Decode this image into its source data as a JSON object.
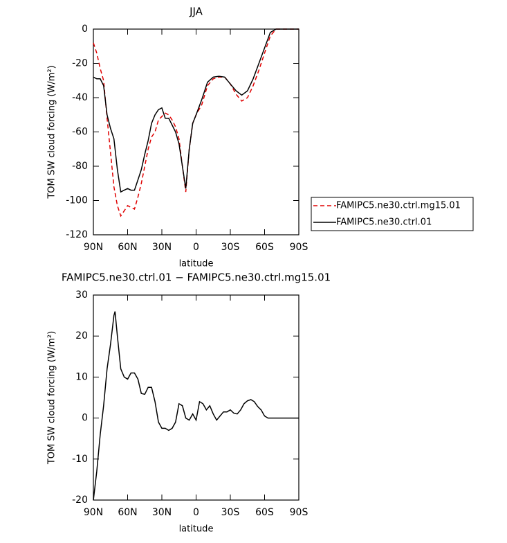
{
  "chart_data": [
    {
      "type": "line",
      "title": "JJA",
      "xlabel": "latitude",
      "ylabel": "TOM SW cloud forcing (W/m²)",
      "x": [
        90,
        87,
        84,
        81,
        78,
        75,
        72,
        69,
        66,
        63,
        60,
        57,
        54,
        51,
        48,
        45,
        42,
        39,
        36,
        33,
        30,
        27,
        24,
        21,
        18,
        15,
        12,
        9,
        6,
        3,
        0,
        -5,
        -10,
        -15,
        -20,
        -25,
        -30,
        -35,
        -40,
        -45,
        -50,
        -55,
        -60,
        -65,
        -70,
        -75,
        -80,
        -85,
        -90
      ],
      "series": [
        {
          "name": "FAMIPC5.ne30.ctrl.mg15.01",
          "color": "#e00000",
          "dash": true,
          "values": [
            -8,
            -14,
            -23,
            -30,
            -52,
            -72,
            -92,
            -103,
            -109,
            -106,
            -103,
            -104,
            -105,
            -98,
            -90,
            -80,
            -70,
            -63,
            -60,
            -53,
            -51,
            -49,
            -50,
            -53,
            -57,
            -64,
            -80,
            -95,
            -70,
            -55,
            -50,
            -44,
            -33,
            -29,
            -28,
            -28,
            -32,
            -38,
            -42,
            -40,
            -33,
            -24,
            -14,
            -4,
            0,
            0,
            0,
            0,
            0
          ]
        },
        {
          "name": "FAMIPC5.ne30.ctrl.01",
          "color": "#000000",
          "dash": false,
          "values": [
            -28,
            -29,
            -29,
            -33,
            -50,
            -58,
            -64,
            -82,
            -95,
            -94,
            -93,
            -94,
            -94,
            -88,
            -82,
            -73,
            -65,
            -55,
            -50,
            -47,
            -46,
            -52,
            -52,
            -56,
            -60,
            -67,
            -80,
            -93,
            -70,
            -55,
            -50,
            -41,
            -31,
            -28,
            -27.5,
            -28,
            -32,
            -36,
            -38.5,
            -36,
            -29,
            -20,
            -11,
            -2,
            0,
            0,
            0,
            0,
            0
          ]
        }
      ],
      "xlim": [
        90,
        -90
      ],
      "xticks": [
        {
          "value": 90,
          "label": "90N"
        },
        {
          "value": 60,
          "label": "60N"
        },
        {
          "value": 30,
          "label": "30N"
        },
        0,
        {
          "value": -30,
          "label": "30S"
        },
        {
          "value": -60,
          "label": "60S"
        },
        {
          "value": -90,
          "label": "90S"
        }
      ],
      "ylim": [
        -120,
        0
      ],
      "yticks": [
        0,
        -20,
        -40,
        -60,
        -80,
        -100,
        -120
      ],
      "legend": "outside-right"
    },
    {
      "type": "line",
      "title": "FAMIPC5.ne30.ctrl.01 − FAMIPC5.ne30.ctrl.mg15.01",
      "xlabel": "latitude",
      "ylabel": "TOM SW cloud forcing (W/m²)",
      "x": [
        90,
        87,
        84,
        81,
        78,
        75,
        72,
        71,
        69,
        66,
        63,
        60,
        57,
        54,
        51,
        48,
        45,
        42,
        39,
        36,
        33,
        30,
        27,
        24,
        21,
        18,
        15,
        12,
        9,
        6,
        3,
        0,
        -3,
        -6,
        -9,
        -12,
        -15,
        -18,
        -21,
        -24,
        -27,
        -30,
        -33,
        -36,
        -39,
        -42,
        -45,
        -48,
        -51,
        -54,
        -57,
        -60,
        -63,
        -66,
        -72,
        -80,
        -90
      ],
      "series": [
        {
          "color": "#000000",
          "dash": false,
          "values": [
            -20,
            -13,
            -4,
            3,
            12,
            18,
            25,
            26,
            20,
            12,
            10,
            9.5,
            11,
            11,
            9.5,
            6,
            5.8,
            7.5,
            7.5,
            4,
            -1,
            -2.5,
            -2.5,
            -3,
            -2.5,
            -1,
            3.5,
            3,
            0,
            -0.5,
            1,
            -0.5,
            4,
            3.5,
            2,
            3,
            1,
            -0.5,
            0.5,
            1.5,
            1.5,
            2,
            1.2,
            1,
            2,
            3.5,
            4.2,
            4.5,
            4,
            2.8,
            2,
            0.5,
            0,
            0,
            0,
            0,
            0
          ]
        }
      ],
      "xlim": [
        90,
        -90
      ],
      "xticks": [
        {
          "value": 90,
          "label": "90N"
        },
        {
          "value": 60,
          "label": "60N"
        },
        {
          "value": 30,
          "label": "30N"
        },
        0,
        {
          "value": -30,
          "label": "30S"
        },
        {
          "value": -60,
          "label": "60S"
        },
        {
          "value": -90,
          "label": "90S"
        }
      ],
      "ylim": [
        -20,
        30
      ],
      "yticks": [
        -20,
        -10,
        0,
        10,
        20,
        30
      ]
    }
  ]
}
